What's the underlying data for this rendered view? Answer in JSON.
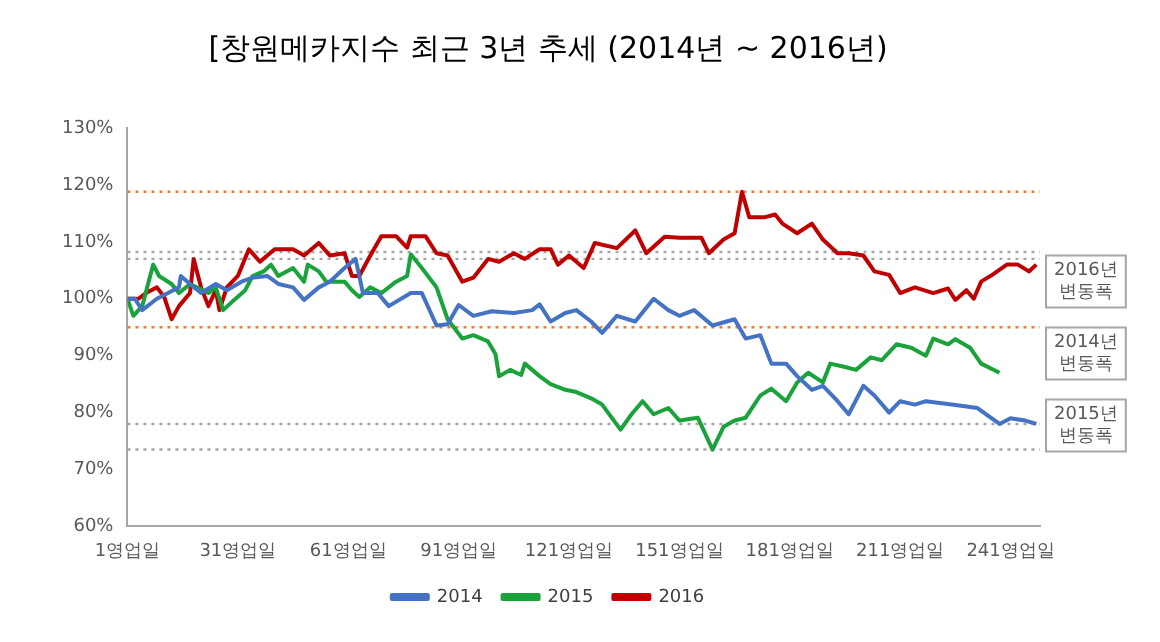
{
  "chart_data": {
    "type": "line",
    "title": "[창원메카지수 최근 3년 추세 (2014년 ~ 2016년)",
    "xlim": [
      1,
      249
    ],
    "xticks": [
      {
        "value": 1,
        "label": "1영업일"
      },
      {
        "value": 31,
        "label": "31영업일"
      },
      {
        "value": 61,
        "label": "61영업일"
      },
      {
        "value": 91,
        "label": "91영업일"
      },
      {
        "value": 121,
        "label": "121영업일"
      },
      {
        "value": 151,
        "label": "151영업일"
      },
      {
        "value": 181,
        "label": "181영업일"
      },
      {
        "value": 211,
        "label": "211영업일"
      },
      {
        "value": 241,
        "label": "241영업일"
      }
    ],
    "ylim": [
      60,
      130
    ],
    "yticks": [
      {
        "value": 60,
        "label": "60%"
      },
      {
        "value": 70,
        "label": "70%"
      },
      {
        "value": 80,
        "label": "80%"
      },
      {
        "value": 90,
        "label": "90%"
      },
      {
        "value": 100,
        "label": "100%"
      },
      {
        "value": 110,
        "label": "110%"
      },
      {
        "value": 120,
        "label": "120%"
      },
      {
        "value": 130,
        "label": "130%"
      }
    ],
    "grid": false,
    "legend": "bottom",
    "marker": "none",
    "line_style": "solid",
    "series": [
      {
        "name": "2014",
        "color": "#4472c4",
        "x": [
          1,
          3,
          5,
          9,
          12,
          15,
          15.5,
          18,
          21,
          25,
          28,
          32,
          35,
          39,
          42,
          46,
          49,
          53,
          56,
          60,
          63,
          65,
          69,
          72,
          78,
          81,
          85,
          88,
          91,
          95,
          100,
          106,
          111,
          113,
          116,
          120,
          123,
          127,
          130,
          134,
          139,
          144,
          148,
          151,
          155,
          160,
          166,
          169,
          173,
          176,
          180,
          183,
          187,
          190,
          194,
          197,
          201,
          204,
          208,
          211,
          215,
          218,
          225,
          232,
          238,
          241,
          245,
          248
        ],
        "values": [
          100,
          100,
          98,
          100,
          101,
          102,
          104,
          102.6,
          101,
          102.6,
          101.5,
          103,
          103.7,
          104,
          102.6,
          102,
          99.8,
          102,
          103,
          105.4,
          107,
          101,
          101,
          98.7,
          101,
          101,
          95.3,
          95.5,
          98.9,
          97,
          97.8,
          97.5,
          98,
          99,
          96,
          97.5,
          98,
          96,
          94,
          97,
          96,
          100,
          98,
          97,
          98,
          95.3,
          96.4,
          93,
          93.6,
          88.6,
          88.6,
          86.4,
          84,
          84.7,
          82,
          79.7,
          84.7,
          83,
          80,
          82,
          81.4,
          82,
          81.4,
          80.8,
          78,
          79,
          78.6,
          78
        ]
      },
      {
        "name": "2015",
        "color": "#1aa33a",
        "x": [
          1,
          2.6,
          5,
          8,
          9.6,
          13,
          15,
          18,
          23,
          25,
          27,
          30,
          33,
          35,
          38,
          40,
          42,
          46,
          49,
          50,
          53,
          55,
          60,
          62,
          64,
          67,
          70,
          74,
          77,
          78,
          81,
          85,
          88,
          92,
          95,
          99,
          101,
          102,
          105,
          108,
          109,
          113,
          116,
          120,
          123,
          127,
          130,
          135,
          138,
          141,
          144,
          148,
          151,
          156,
          160,
          163,
          166,
          169,
          173,
          176,
          180,
          183,
          186,
          190,
          192,
          196,
          199,
          203,
          206,
          210,
          214,
          218,
          220,
          224,
          226,
          230,
          233,
          238
        ],
        "values": [
          100,
          97,
          98.7,
          106,
          104,
          102.6,
          101,
          102.6,
          101,
          102,
          98,
          99.8,
          101.5,
          104,
          104.8,
          106,
          104,
          105.4,
          103,
          106,
          104.8,
          103,
          103,
          101.5,
          100.3,
          102,
          101,
          103,
          104,
          107.8,
          105.4,
          102,
          96.4,
          93,
          93.6,
          92.5,
          90.3,
          86.4,
          87.5,
          86.6,
          88.6,
          86.4,
          85,
          84,
          83.6,
          82.5,
          81.4,
          77,
          79.7,
          82,
          79.7,
          80.8,
          78.6,
          79.1,
          73.5,
          77.5,
          78.6,
          79.1,
          83,
          84.2,
          82,
          85.3,
          87,
          85.3,
          88.6,
          88,
          87.5,
          89.7,
          89.2,
          92,
          91.4,
          90,
          93,
          92,
          92.9,
          91.4,
          88.6,
          87
        ]
      },
      {
        "name": "2016",
        "color": "#c00000",
        "x": [
          1,
          4,
          6,
          9,
          11,
          13,
          15,
          18,
          19,
          21,
          23,
          25,
          26,
          28,
          31,
          34,
          37,
          41,
          46,
          49,
          53,
          56,
          60,
          62,
          64,
          67,
          70,
          74,
          77,
          78,
          82,
          85,
          88,
          92,
          95,
          99,
          102,
          106,
          109,
          113,
          116,
          118,
          121,
          125,
          128,
          134,
          139,
          142,
          147,
          151,
          157,
          159,
          163,
          166,
          168,
          170,
          174,
          177,
          179,
          183,
          187,
          190,
          194,
          197,
          201,
          204,
          208,
          211,
          215,
          220,
          224,
          226,
          229,
          231,
          233,
          236,
          240,
          243,
          246,
          248
        ],
        "values": [
          100,
          100,
          101,
          102,
          100.3,
          96.4,
          98.7,
          101,
          107,
          102,
          98.7,
          101.5,
          98,
          102,
          104,
          108.7,
          106.5,
          108.7,
          108.7,
          107.6,
          109.8,
          107.6,
          108,
          104,
          104,
          107.6,
          111,
          111,
          109,
          111,
          111,
          108,
          107.6,
          103,
          103.7,
          107,
          106.5,
          108,
          107,
          108.7,
          108.7,
          106,
          107.6,
          105.4,
          109.8,
          108.9,
          112,
          108,
          110.9,
          110.7,
          110.7,
          108,
          110.4,
          111.5,
          118.8,
          114.3,
          114.3,
          114.8,
          113.2,
          111.5,
          113.2,
          110.4,
          108,
          108,
          107.6,
          104.8,
          104.2,
          101,
          102,
          101,
          101.8,
          99.8,
          101.5,
          100,
          103,
          104.2,
          106,
          106,
          104.8,
          106
        ]
      }
    ],
    "ref_lines": [
      {
        "axis": "y",
        "value": 118.8,
        "color": "#ed7d31",
        "line_style": "dotted"
      },
      {
        "axis": "y",
        "value": 95,
        "color": "#ed7d31",
        "line_style": "dotted"
      },
      {
        "axis": "y",
        "value": 108.2,
        "color": "#a6a6a6",
        "line_style": "dotted"
      },
      {
        "axis": "y",
        "value": 107,
        "color": "#a6a6a6",
        "line_style": "dotted"
      },
      {
        "axis": "y",
        "value": 73.5,
        "color": "#a6a6a6",
        "line_style": "dotted"
      },
      {
        "axis": "y",
        "value": 78,
        "color": "#a6a6a6",
        "line_style": "dotted"
      }
    ],
    "annotations": [
      "2016년 변동폭",
      "2014년 변동폭",
      "2015년 변동폭"
    ]
  }
}
